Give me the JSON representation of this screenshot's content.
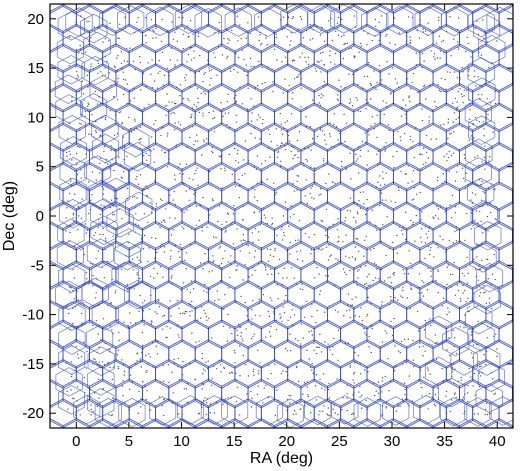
{
  "chart_data": {
    "type": "scatter",
    "title": "",
    "xlabel": "RA  (deg)",
    "ylabel": "Dec  (deg)",
    "xlim": [
      -2.5,
      41.5
    ],
    "ylim": [
      -21.5,
      21.5
    ],
    "xticks": [
      0,
      5,
      10,
      15,
      20,
      25,
      30,
      35,
      40
    ],
    "yticks": [
      -20,
      -15,
      -10,
      -5,
      0,
      5,
      10,
      15,
      20
    ],
    "grid": false,
    "legend": "none",
    "series": [
      {
        "kind": "hexagonal tiling of fields (point-up hexagons)",
        "hex_radius_deg": 1.45,
        "row_spacing_deg": 2.0,
        "x_start_deg": 0.0,
        "x_end_deg": 40.0,
        "y_start_deg": -20.0,
        "y_end_deg": 20.0,
        "color": "#2f45c8"
      },
      {
        "kind": "scattered source points",
        "color": "#555555"
      }
    ]
  }
}
